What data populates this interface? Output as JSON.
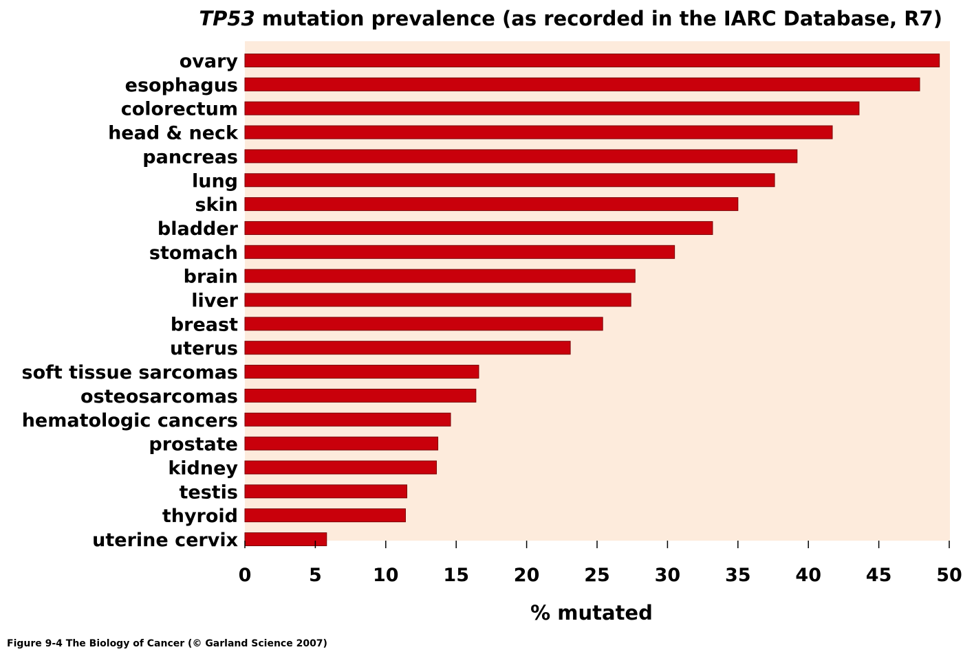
{
  "chart_data": {
    "type": "bar",
    "orientation": "horizontal",
    "title_italic": "TP53",
    "title_rest": " mutation prevalence (as recorded in the IARC Database, R7)",
    "xlabel": "% mutated",
    "ylabel": "",
    "xlim": [
      0,
      50
    ],
    "xticks": [
      0,
      5,
      10,
      15,
      20,
      25,
      30,
      35,
      40,
      45,
      50
    ],
    "grid": false,
    "categories": [
      "ovary",
      "esophagus",
      "colorectum",
      "head & neck",
      "pancreas",
      "lung",
      "skin",
      "bladder",
      "stomach",
      "brain",
      "liver",
      "breast",
      "uterus",
      "soft tissue sarcomas",
      "osteosarcomas",
      "hematologic cancers",
      "prostate",
      "kidney",
      "testis",
      "thyroid",
      "uterine cervix"
    ],
    "values": [
      49.3,
      47.9,
      43.6,
      41.7,
      39.2,
      37.6,
      35.0,
      33.2,
      30.5,
      27.7,
      27.4,
      25.4,
      23.1,
      16.6,
      16.4,
      14.6,
      13.7,
      13.6,
      11.5,
      11.4,
      5.8
    ]
  },
  "colors": {
    "bar_fill": "#c9000b",
    "bar_edge": "#7a0007",
    "plot_background": "#fdebdc"
  },
  "caption": "Figure 9-4  The Biology of Cancer (© Garland Science 2007)"
}
